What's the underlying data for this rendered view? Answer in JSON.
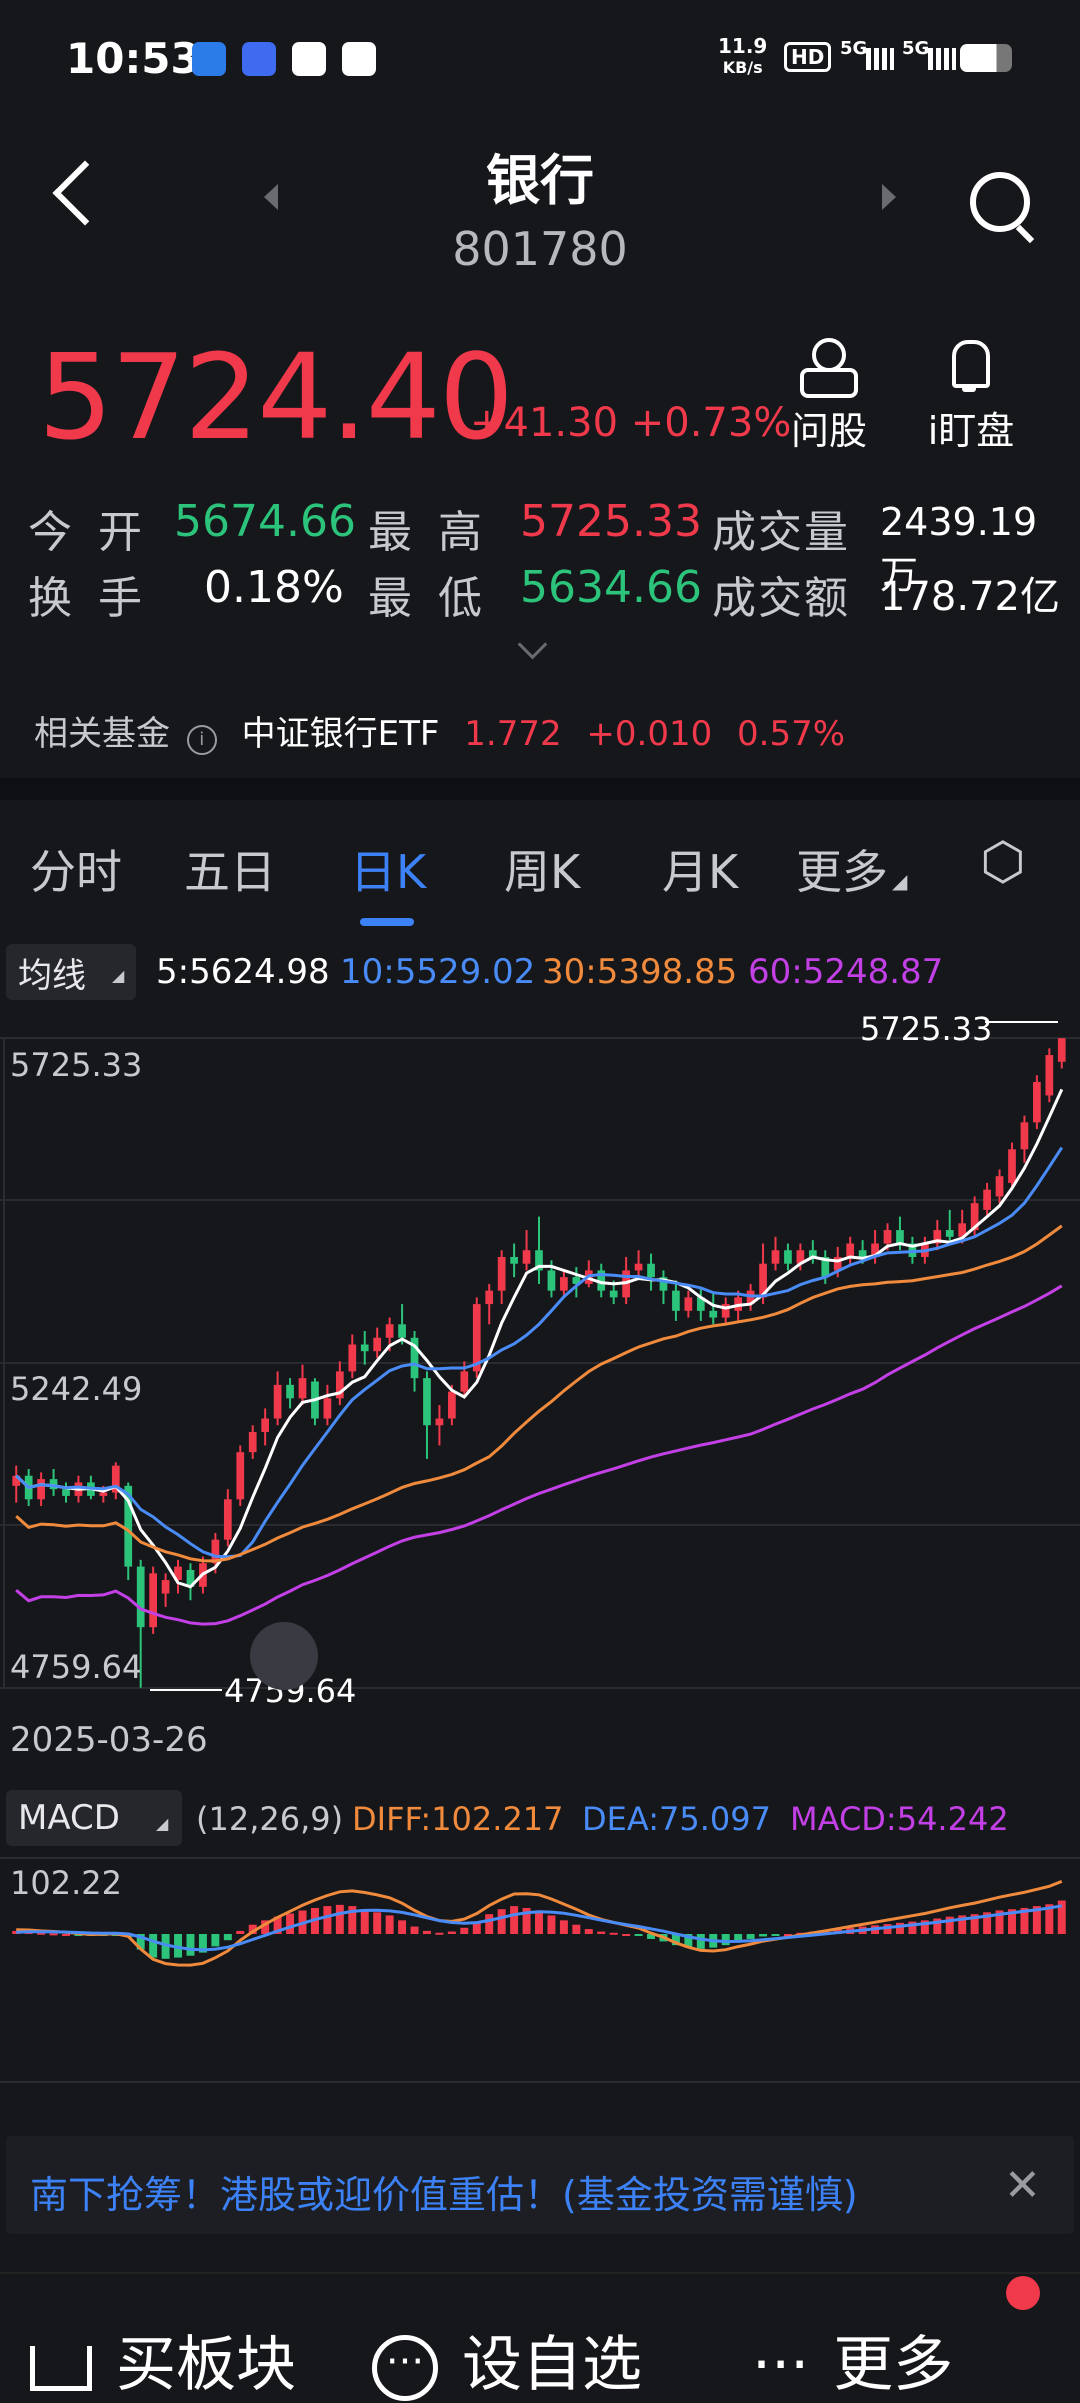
{
  "status": {
    "time": "10:53",
    "net_speed_value": "11.9",
    "net_speed_unit": "KB/s",
    "hd": "HD",
    "sig1": "5G",
    "sig2": "5G"
  },
  "header": {
    "title": "银行",
    "code": "801780"
  },
  "quote": {
    "price": "5724.40",
    "change": "+41.30",
    "change_pct": "+0.73%",
    "ask_label": "问股",
    "watch_label": "i盯盘"
  },
  "stats": {
    "open_label": "今 开",
    "open": "5674.66",
    "high_label": "最 高",
    "high": "5725.33",
    "volume_label": "成交量",
    "volume": "2439.19万",
    "turnover_label": "换 手",
    "turnover": "0.18%",
    "low_label": "最 低",
    "low": "5634.66",
    "amount_label": "成交额",
    "amount": "178.72亿"
  },
  "fund": {
    "label": "相关基金",
    "name": "中证银行ETF",
    "price": "1.772",
    "change": "+0.010",
    "pct": "0.57%"
  },
  "tabs": [
    "分时",
    "五日",
    "日K",
    "周K",
    "月K",
    "更多"
  ],
  "ma": {
    "selector": "均线",
    "ma5": "5:5624.98",
    "ma10": "10:5529.02",
    "ma30": "30:5398.85",
    "ma60": "60:5248.87"
  },
  "colors": {
    "up": "#f0394a",
    "down": "#2cc37a",
    "ma5": "#ffffff",
    "ma10": "#4a8cf7",
    "ma30": "#f08a3c",
    "ma60": "#c340e6",
    "accent": "#3c82f6"
  },
  "chart_data": {
    "type": "candlestick",
    "y_labels": [
      "5725.33",
      "5242.49",
      "4759.64"
    ],
    "max_marker": "5725.33",
    "min_marker": "4759.64",
    "start_date": "2025-03-26",
    "ylim": [
      4759.64,
      5725.33
    ],
    "candles": [
      [
        5060,
        5075,
        5035,
        5090
      ],
      [
        5075,
        5040,
        5030,
        5085
      ],
      [
        5040,
        5070,
        5030,
        5080
      ],
      [
        5070,
        5055,
        5045,
        5085
      ],
      [
        5055,
        5045,
        5035,
        5065
      ],
      [
        5045,
        5065,
        5035,
        5075
      ],
      [
        5065,
        5045,
        5040,
        5075
      ],
      [
        5045,
        5050,
        5035,
        5060
      ],
      [
        5050,
        5090,
        5040,
        5095
      ],
      [
        5060,
        4940,
        4920,
        5065
      ],
      [
        4940,
        4850,
        4760,
        4950
      ],
      [
        4850,
        4930,
        4840,
        4940
      ],
      [
        4900,
        4920,
        4880,
        4930
      ],
      [
        4920,
        4940,
        4900,
        4950
      ],
      [
        4935,
        4910,
        4890,
        4945
      ],
      [
        4910,
        4945,
        4900,
        4955
      ],
      [
        4945,
        4980,
        4930,
        4990
      ],
      [
        4980,
        5040,
        4970,
        5055
      ],
      [
        5040,
        5110,
        5030,
        5120
      ],
      [
        5110,
        5140,
        5100,
        5150
      ],
      [
        5140,
        5160,
        5120,
        5175
      ],
      [
        5160,
        5210,
        5150,
        5230
      ],
      [
        5210,
        5190,
        5175,
        5220
      ],
      [
        5190,
        5220,
        5180,
        5240
      ],
      [
        5215,
        5160,
        5150,
        5220
      ],
      [
        5160,
        5190,
        5150,
        5210
      ],
      [
        5190,
        5230,
        5180,
        5245
      ],
      [
        5230,
        5270,
        5220,
        5285
      ],
      [
        5270,
        5260,
        5240,
        5290
      ],
      [
        5260,
        5280,
        5250,
        5295
      ],
      [
        5280,
        5300,
        5260,
        5310
      ],
      [
        5300,
        5280,
        5270,
        5330
      ],
      [
        5280,
        5220,
        5200,
        5290
      ],
      [
        5220,
        5150,
        5100,
        5230
      ],
      [
        5150,
        5160,
        5120,
        5180
      ],
      [
        5160,
        5200,
        5150,
        5210
      ],
      [
        5200,
        5230,
        5190,
        5245
      ],
      [
        5230,
        5330,
        5220,
        5340
      ],
      [
        5330,
        5350,
        5300,
        5360
      ],
      [
        5350,
        5400,
        5330,
        5410
      ],
      [
        5400,
        5390,
        5370,
        5420
      ],
      [
        5390,
        5410,
        5380,
        5440
      ],
      [
        5410,
        5380,
        5360,
        5460
      ],
      [
        5380,
        5350,
        5340,
        5395
      ],
      [
        5350,
        5370,
        5340,
        5380
      ],
      [
        5370,
        5360,
        5340,
        5385
      ],
      [
        5360,
        5380,
        5355,
        5395
      ],
      [
        5380,
        5350,
        5340,
        5390
      ],
      [
        5350,
        5340,
        5330,
        5365
      ],
      [
        5340,
        5380,
        5330,
        5400
      ],
      [
        5380,
        5390,
        5370,
        5410
      ],
      [
        5390,
        5370,
        5350,
        5405
      ],
      [
        5370,
        5350,
        5330,
        5380
      ],
      [
        5350,
        5320,
        5305,
        5365
      ],
      [
        5320,
        5340,
        5310,
        5350
      ],
      [
        5340,
        5320,
        5305,
        5355
      ],
      [
        5320,
        5310,
        5300,
        5345
      ],
      [
        5310,
        5330,
        5300,
        5340
      ],
      [
        5320,
        5340,
        5305,
        5350
      ],
      [
        5330,
        5350,
        5320,
        5360
      ],
      [
        5340,
        5390,
        5330,
        5420
      ],
      [
        5390,
        5410,
        5380,
        5430
      ],
      [
        5410,
        5390,
        5380,
        5420
      ],
      [
        5390,
        5410,
        5380,
        5420
      ],
      [
        5410,
        5400,
        5390,
        5425
      ],
      [
        5400,
        5370,
        5360,
        5410
      ],
      [
        5380,
        5400,
        5370,
        5415
      ],
      [
        5400,
        5420,
        5390,
        5430
      ],
      [
        5410,
        5400,
        5390,
        5425
      ],
      [
        5400,
        5420,
        5390,
        5440
      ],
      [
        5420,
        5440,
        5410,
        5450
      ],
      [
        5440,
        5420,
        5410,
        5460
      ],
      [
        5420,
        5400,
        5390,
        5430
      ],
      [
        5400,
        5420,
        5390,
        5430
      ],
      [
        5420,
        5440,
        5410,
        5455
      ],
      [
        5440,
        5430,
        5420,
        5470
      ],
      [
        5430,
        5450,
        5420,
        5470
      ],
      [
        5440,
        5480,
        5430,
        5490
      ],
      [
        5470,
        5500,
        5460,
        5510
      ],
      [
        5490,
        5520,
        5480,
        5530
      ],
      [
        5510,
        5560,
        5500,
        5570
      ],
      [
        5560,
        5600,
        5540,
        5610
      ],
      [
        5600,
        5660,
        5590,
        5670
      ],
      [
        5640,
        5700,
        5630,
        5710
      ],
      [
        5690,
        5725,
        5680,
        5725
      ]
    ],
    "macd": {
      "params": "(12,26,9)",
      "diff": "DIFF:102.217",
      "dea": "DEA:75.097",
      "macd": "MACD:54.242",
      "y_label": "102.22",
      "selector": "MACD",
      "hist": [
        5,
        4,
        2,
        1,
        0,
        -2,
        -3,
        -2,
        -1,
        -5,
        -25,
        -38,
        -40,
        -38,
        -35,
        -30,
        -20,
        -10,
        5,
        15,
        22,
        28,
        33,
        38,
        42,
        45,
        47,
        45,
        40,
        35,
        30,
        22,
        12,
        5,
        2,
        4,
        10,
        20,
        32,
        40,
        45,
        42,
        38,
        30,
        22,
        15,
        8,
        4,
        2,
        0,
        -2,
        -8,
        -12,
        -18,
        -22,
        -24,
        -22,
        -18,
        -12,
        -8,
        -4,
        -2,
        0,
        2,
        4,
        6,
        8,
        10,
        12,
        14,
        16,
        18,
        20,
        22,
        25,
        28,
        30,
        32,
        35,
        38,
        40,
        42,
        45,
        48,
        54
      ]
    }
  },
  "banner": {
    "text": "南下抢筹！港股或迎价值重估！(基金投资需谨慎)"
  },
  "bottom": {
    "buy": "买板块",
    "watch": "设自选",
    "more": "更多"
  }
}
